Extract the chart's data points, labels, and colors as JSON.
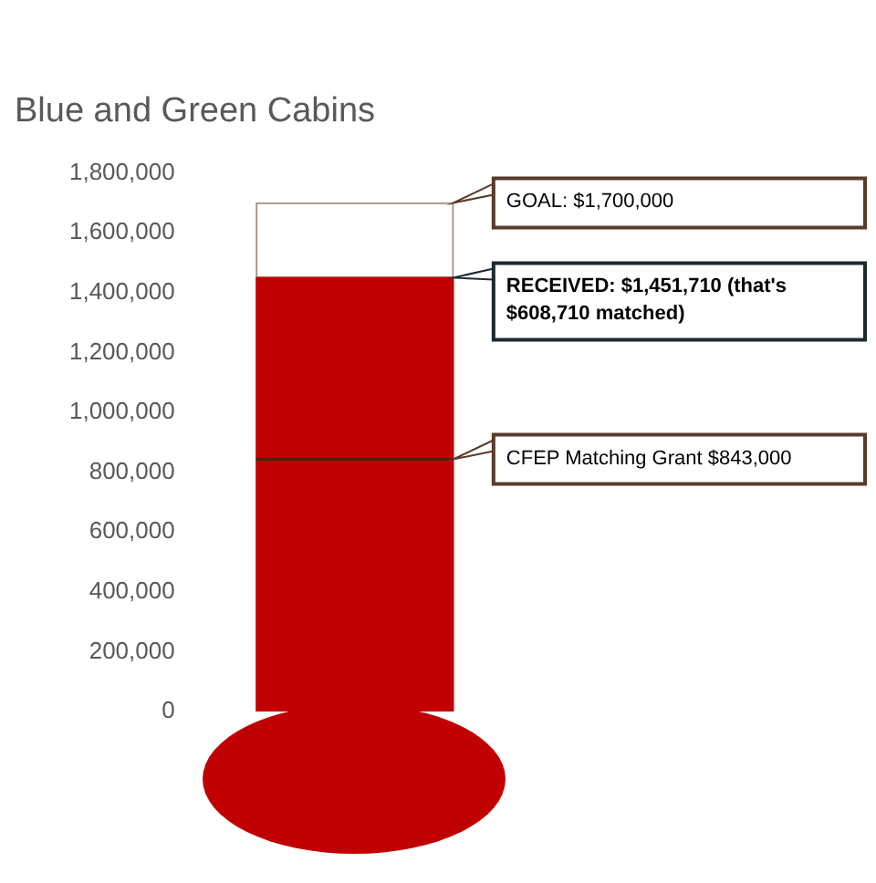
{
  "chart_data": {
    "type": "bar",
    "title": "Blue and Green Cabins",
    "categories": [
      null
    ],
    "stacked": true,
    "series": [
      {
        "color": "#c00000",
        "values": [
          1450000
        ]
      },
      {
        "color": "#ffffff",
        "values": [
          250000
        ]
      }
    ],
    "ylim": [
      0,
      1800000
    ],
    "yticks": [
      {
        "value": 0,
        "label": "0"
      },
      {
        "value": 200000,
        "label": "200,000"
      },
      {
        "value": 400000,
        "label": "400,000"
      },
      {
        "value": 600000,
        "label": "600,000"
      },
      {
        "value": 800000,
        "label": "800,000"
      },
      {
        "value": 1000000,
        "label": "1,000,000"
      },
      {
        "value": 1200000,
        "label": "1,200,000"
      },
      {
        "value": 1400000,
        "label": "1,400,000"
      },
      {
        "value": 1600000,
        "label": "1,600,000"
      },
      {
        "value": 1800000,
        "label": "1,800,000"
      }
    ],
    "annotations": [
      "GOAL: $1,700,000",
      "RECEIVED: $1,451,710 (that's $608,710 matched)"
    ],
    "ref_lines": [
      {
        "axis": "y",
        "value": 843000,
        "label": "CFEP Matching Grant $843,000",
        "color": "#5a1a10"
      }
    ],
    "grid": false,
    "legend": false
  }
}
